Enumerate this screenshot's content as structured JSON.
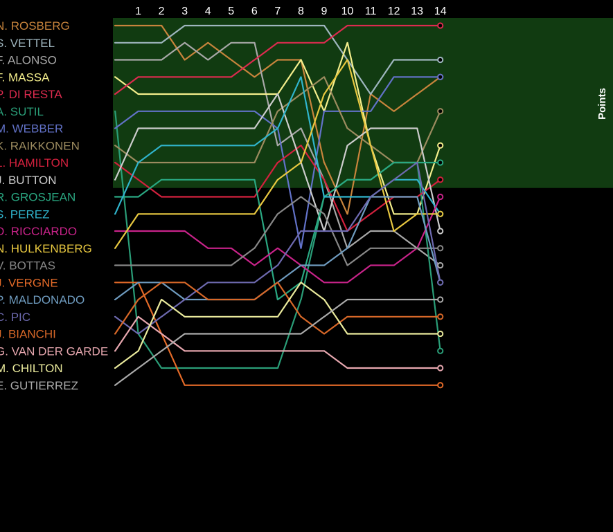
{
  "chart_data": {
    "type": "line",
    "title": "",
    "points_zone_label": "Points",
    "points_positions": 10,
    "x": [
      0,
      1,
      2,
      3,
      4,
      5,
      6,
      7,
      8,
      9,
      10,
      11,
      12,
      13,
      14
    ],
    "lap_labels": [
      "1",
      "2",
      "3",
      "4",
      "5",
      "6",
      "7",
      "8",
      "9",
      "10",
      "11",
      "12",
      "13",
      "14"
    ],
    "ylim": [
      1,
      22
    ],
    "y_inverted": true,
    "grid": false,
    "series": [
      {
        "name": "N. ROSBERG",
        "color": "#c8843c",
        "values": [
          1,
          1,
          1,
          3,
          2,
          3,
          4,
          3,
          3,
          9,
          12,
          5,
          6,
          5,
          4
        ]
      },
      {
        "name": "S. VETTEL",
        "color": "#9fb6bf",
        "values": [
          2,
          2,
          2,
          1,
          1,
          1,
          1,
          1,
          1,
          1,
          3,
          5,
          3,
          3,
          3
        ]
      },
      {
        "name": "F. ALONSO",
        "color": "#a8a8a8",
        "values": [
          3,
          3,
          3,
          2,
          3,
          2,
          2,
          8,
          7,
          10,
          14,
          13,
          13,
          14,
          15
        ]
      },
      {
        "name": "F. MASSA",
        "color": "#f4ee8c",
        "values": [
          4,
          5,
          5,
          5,
          5,
          5,
          5,
          5,
          3,
          6,
          2,
          8,
          12,
          12,
          8
        ]
      },
      {
        "name": "P. DI RESTA",
        "color": "#dd2b4f",
        "values": [
          5,
          4,
          4,
          4,
          4,
          4,
          3,
          2,
          2,
          2,
          1,
          1,
          1,
          1,
          1
        ]
      },
      {
        "name": "A. SUTIL",
        "color": "#2a9e78",
        "values": [
          6,
          19,
          21,
          21,
          21,
          21,
          21,
          21,
          17,
          11,
          10,
          10,
          9,
          9,
          20
        ]
      },
      {
        "name": "M. WEBBER",
        "color": "#6272c8",
        "values": [
          7,
          6,
          6,
          6,
          6,
          6,
          6,
          7,
          14,
          6,
          6,
          6,
          4,
          4,
          4
        ]
      },
      {
        "name": "K. RAIKKONEN",
        "color": "#9c8b5f",
        "values": [
          8,
          9,
          9,
          9,
          9,
          9,
          9,
          6,
          5,
          4,
          7,
          8,
          9,
          9,
          6
        ]
      },
      {
        "name": "L. HAMILTON",
        "color": "#d4213e",
        "values": [
          9,
          10,
          11,
          11,
          11,
          11,
          11,
          9,
          8,
          10,
          13,
          12,
          11,
          11,
          10
        ]
      },
      {
        "name": "J. BUTTON",
        "color": "#cccccc",
        "values": [
          10,
          7,
          7,
          7,
          7,
          7,
          7,
          5,
          9,
          13,
          8,
          7,
          7,
          7,
          13
        ]
      },
      {
        "name": "R. GROSJEAN",
        "color": "#2aa882",
        "values": [
          11,
          11,
          10,
          10,
          10,
          10,
          10,
          17,
          16,
          11,
          10,
          10,
          9,
          9,
          9
        ]
      },
      {
        "name": "S. PEREZ",
        "color": "#30b4cc",
        "values": [
          12,
          9,
          8,
          8,
          8,
          8,
          8,
          7,
          4,
          11,
          11,
          11,
          10,
          10,
          12
        ]
      },
      {
        "name": "D. RICCIARDO",
        "color": "#c9238a",
        "values": [
          13,
          13,
          13,
          13,
          14,
          14,
          15,
          14,
          15,
          16,
          16,
          15,
          15,
          14,
          11
        ]
      },
      {
        "name": "N. HULKENBERG",
        "color": "#e8c840",
        "values": [
          14,
          12,
          12,
          12,
          12,
          12,
          12,
          10,
          9,
          5,
          3,
          8,
          13,
          12,
          12
        ]
      },
      {
        "name": "V. BOTTAS",
        "color": "#888888",
        "values": [
          15,
          15,
          15,
          15,
          15,
          15,
          14,
          12,
          11,
          12,
          15,
          14,
          14,
          14,
          14
        ]
      },
      {
        "name": "J. VERGNE",
        "color": "#e36a28",
        "values": [
          16,
          16,
          19,
          22,
          22,
          22,
          22,
          22,
          22,
          22,
          22,
          22,
          22,
          22,
          22
        ]
      },
      {
        "name": "P. MALDONADO",
        "color": "#6f9cc0",
        "values": [
          17,
          16,
          16,
          17,
          17,
          17,
          17,
          16,
          15,
          15,
          14,
          11,
          11,
          11,
          16
        ]
      },
      {
        "name": "C. PIC",
        "color": "#6e6ab0",
        "values": [
          18,
          19,
          18,
          17,
          16,
          16,
          16,
          15,
          13,
          13,
          13,
          11,
          10,
          9,
          16
        ]
      },
      {
        "name": "J. BIANCHI",
        "color": "#d86828",
        "values": [
          19,
          17,
          16,
          16,
          17,
          17,
          17,
          16,
          18,
          19,
          18,
          18,
          18,
          18,
          18
        ]
      },
      {
        "name": "G. VAN DER GARDE",
        "color": "#e8a8b0",
        "values": [
          20,
          18,
          19,
          20,
          20,
          20,
          20,
          20,
          20,
          20,
          21,
          21,
          21,
          21,
          21
        ]
      },
      {
        "name": "M. CHILTON",
        "color": "#eaea9c",
        "values": [
          21,
          20,
          17,
          18,
          18,
          18,
          18,
          18,
          16,
          17,
          19,
          19,
          19,
          19,
          19
        ]
      },
      {
        "name": "E. GUTIERREZ",
        "color": "#aaaaaa",
        "values": [
          22,
          21,
          20,
          19,
          19,
          19,
          19,
          19,
          19,
          18,
          17,
          17,
          17,
          17,
          17
        ]
      }
    ]
  }
}
